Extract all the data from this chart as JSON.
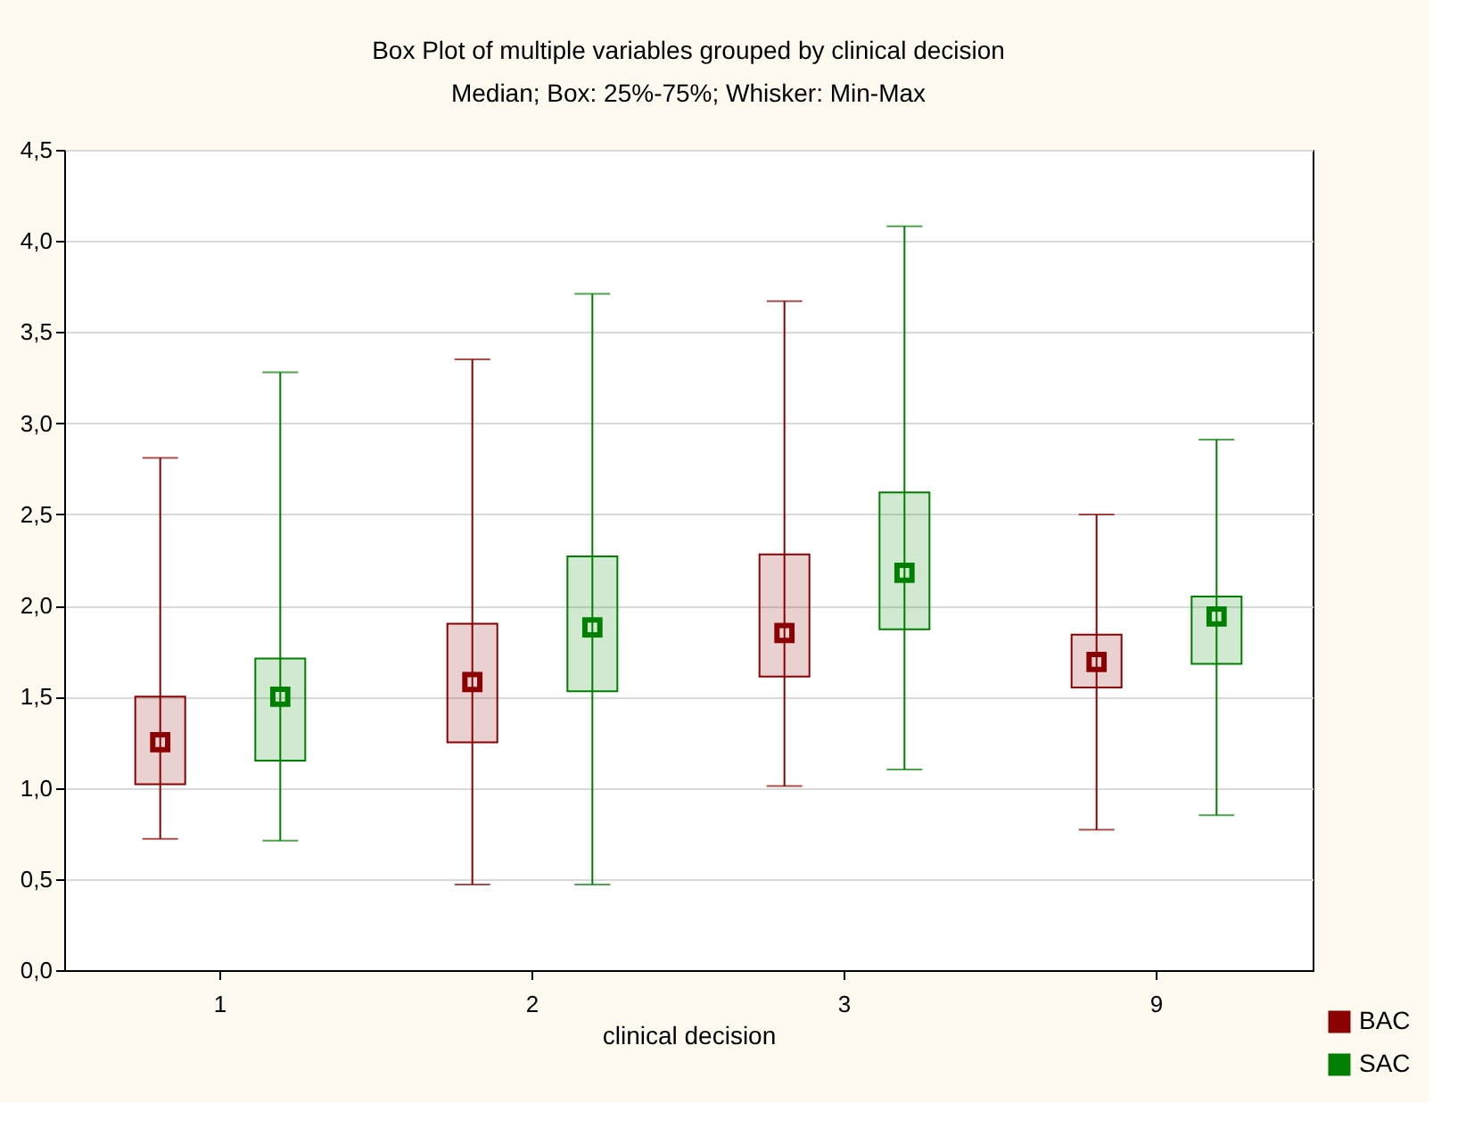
{
  "chart_data": {
    "type": "box",
    "title": "Box Plot of multiple variables grouped by  clinical decision",
    "subtitle": "Median; Box: 25%-75%; Whisker: Min-Max",
    "xlabel": "clinical decision",
    "categories": [
      "1",
      "2",
      "3",
      "9"
    ],
    "series": [
      {
        "name": "BAC",
        "color": "#8b0000",
        "boxes": [
          {
            "low": 0.72,
            "q1": 1.02,
            "median": 1.25,
            "q3": 1.5,
            "high": 2.81
          },
          {
            "low": 0.47,
            "q1": 1.25,
            "median": 1.58,
            "q3": 1.9,
            "high": 3.35
          },
          {
            "low": 1.01,
            "q1": 1.61,
            "median": 1.85,
            "q3": 2.28,
            "high": 3.67
          },
          {
            "low": 0.77,
            "q1": 1.55,
            "median": 1.69,
            "q3": 1.84,
            "high": 2.5
          }
        ]
      },
      {
        "name": "SAC",
        "color": "#008000",
        "boxes": [
          {
            "low": 0.71,
            "q1": 1.15,
            "median": 1.5,
            "q3": 1.71,
            "high": 3.28
          },
          {
            "low": 0.47,
            "q1": 1.53,
            "median": 1.88,
            "q3": 2.27,
            "high": 3.71
          },
          {
            "low": 1.1,
            "q1": 1.87,
            "median": 2.18,
            "q3": 2.62,
            "high": 4.08
          },
          {
            "low": 0.85,
            "q1": 1.68,
            "median": 1.94,
            "q3": 2.05,
            "high": 2.91
          }
        ]
      }
    ],
    "ylim": [
      0,
      4.5
    ],
    "yticks": [
      {
        "value": 0,
        "label": "0,0"
      },
      {
        "value": 0.5,
        "label": "0,5"
      },
      {
        "value": 1,
        "label": "1,0"
      },
      {
        "value": 1.5,
        "label": "1,5"
      },
      {
        "value": 2,
        "label": "2,0"
      },
      {
        "value": 2.5,
        "label": "2,5"
      },
      {
        "value": 3,
        "label": "3,0"
      },
      {
        "value": 3.5,
        "label": "3,5"
      },
      {
        "value": 4,
        "label": "4,0"
      },
      {
        "value": 4.5,
        "label": "4,5"
      }
    ],
    "grid": "y",
    "legend": "bottom right",
    "marker": "square"
  }
}
